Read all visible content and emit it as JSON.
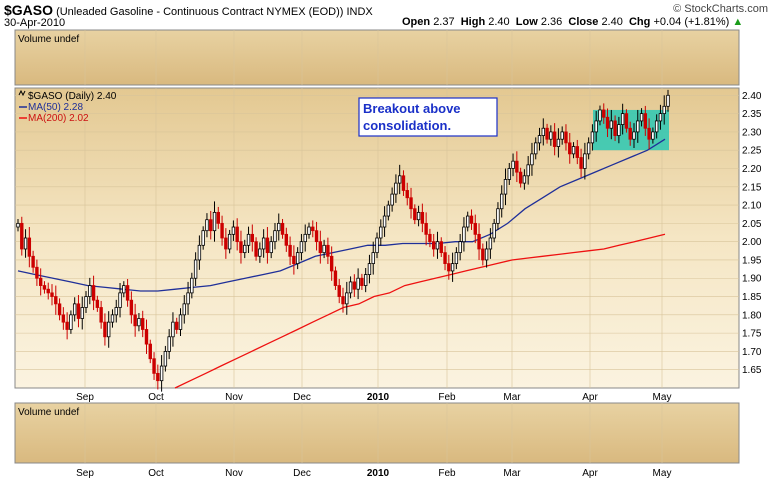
{
  "header": {
    "symbol": "$GASO",
    "description": "(Unleaded Gasoline - Continuous Contract NYMEX (EOD))",
    "exchange": "INDX",
    "date": "30-Apr-2010",
    "open_label": "Open",
    "open": "2.37",
    "high_label": "High",
    "high": "2.40",
    "low_label": "Low",
    "low": "2.36",
    "close_label": "Close",
    "close": "2.40",
    "chg_label": "Chg",
    "chg": "+0.04 (+1.81%)",
    "brand": "© StockCharts.com"
  },
  "volume_top": "Volume undef",
  "volume_bottom": "Volume undef",
  "legend": {
    "price": "$GASO (Daily) 2.40",
    "ma50": "MA(50) 2.28",
    "ma200": "MA(200) 2.02"
  },
  "annotation": {
    "line1": "Breakout above",
    "line2": "consolidation."
  },
  "colors": {
    "panel_bg": "#f2e2bc",
    "up_bar": "#000000",
    "down_bar": "#cc0000",
    "ma50": "#1f2f99",
    "ma200": "#ee1111",
    "highlight": "#2ac8b4",
    "annotation_text": "#1a30c8"
  },
  "chart_data": {
    "type": "candlestick",
    "ylim": [
      1.6,
      2.42
    ],
    "yticks": [
      "2.40",
      "2.35",
      "2.30",
      "2.25",
      "2.20",
      "2.15",
      "2.10",
      "2.05",
      "2.00",
      "1.95",
      "1.90",
      "1.85",
      "1.80",
      "1.75",
      "1.70",
      "1.65"
    ],
    "months": [
      "Sep",
      "Oct",
      "Nov",
      "Dec",
      "2010",
      "Feb",
      "Mar",
      "Apr",
      "May"
    ],
    "closes": [
      2.05,
      1.98,
      2.01,
      1.96,
      1.93,
      1.9,
      1.88,
      1.87,
      1.86,
      1.85,
      1.83,
      1.8,
      1.78,
      1.76,
      1.8,
      1.83,
      1.79,
      1.82,
      1.85,
      1.88,
      1.84,
      1.82,
      1.78,
      1.74,
      1.78,
      1.8,
      1.82,
      1.86,
      1.88,
      1.84,
      1.8,
      1.77,
      1.79,
      1.76,
      1.72,
      1.68,
      1.64,
      1.62,
      1.66,
      1.7,
      1.74,
      1.78,
      1.76,
      1.8,
      1.83,
      1.86,
      1.9,
      1.95,
      1.99,
      2.03,
      2.06,
      2.03,
      2.08,
      2.05,
      2.01,
      1.98,
      2.02,
      2.04,
      2.0,
      1.97,
      1.99,
      2.02,
      2.0,
      1.96,
      1.98,
      2.01,
      1.97,
      2.0,
      2.03,
      2.05,
      2.02,
      1.99,
      1.96,
      1.94,
      1.97,
      2.0,
      2.02,
      2.04,
      2.03,
      2.0,
      1.97,
      1.99,
      1.96,
      1.92,
      1.88,
      1.85,
      1.83,
      1.86,
      1.89,
      1.87,
      1.9,
      1.88,
      1.91,
      1.94,
      1.97,
      2.01,
      2.04,
      2.07,
      2.1,
      2.13,
      2.16,
      2.18,
      2.14,
      2.12,
      2.09,
      2.06,
      2.08,
      2.05,
      2.02,
      2.0,
      1.98,
      2.0,
      1.97,
      1.94,
      1.92,
      1.94,
      1.97,
      2.0,
      2.04,
      2.07,
      2.05,
      2.02,
      1.98,
      1.95,
      1.98,
      2.01,
      2.05,
      2.09,
      2.13,
      2.17,
      2.2,
      2.22,
      2.19,
      2.16,
      2.18,
      2.21,
      2.24,
      2.27,
      2.29,
      2.31,
      2.28,
      2.3,
      2.26,
      2.28,
      2.3,
      2.27,
      2.24,
      2.26,
      2.23,
      2.2,
      2.24,
      2.27,
      2.3,
      2.33,
      2.36,
      2.34,
      2.31,
      2.33,
      2.29,
      2.32,
      2.35,
      2.31,
      2.28,
      2.3,
      2.33,
      2.35,
      2.31,
      2.28,
      2.3,
      2.33,
      2.35,
      2.37,
      2.4
    ],
    "ma50": [
      1.92,
      1.91,
      1.9,
      1.89,
      1.88,
      1.875,
      1.87,
      1.865,
      1.865,
      1.87,
      1.875,
      1.88,
      1.89,
      1.9,
      1.91,
      1.92,
      1.94,
      1.96,
      1.97,
      1.98,
      1.99,
      1.99,
      1.995,
      1.995,
      1.995,
      2.0,
      2.0,
      2.02,
      2.05,
      2.09,
      2.12,
      2.15,
      2.17,
      2.19,
      2.21,
      2.23,
      2.25,
      2.28
    ],
    "ma200": [
      1.6,
      1.62,
      1.64,
      1.66,
      1.68,
      1.7,
      1.72,
      1.74,
      1.76,
      1.78,
      1.8,
      1.82,
      1.83,
      1.85,
      1.86,
      1.88,
      1.89,
      1.9,
      1.91,
      1.92,
      1.93,
      1.94,
      1.95,
      1.955,
      1.96,
      1.965,
      1.97,
      1.975,
      1.98,
      1.99,
      2.0,
      2.01,
      2.02
    ],
    "highlight_range": [
      2.25,
      2.36
    ]
  }
}
